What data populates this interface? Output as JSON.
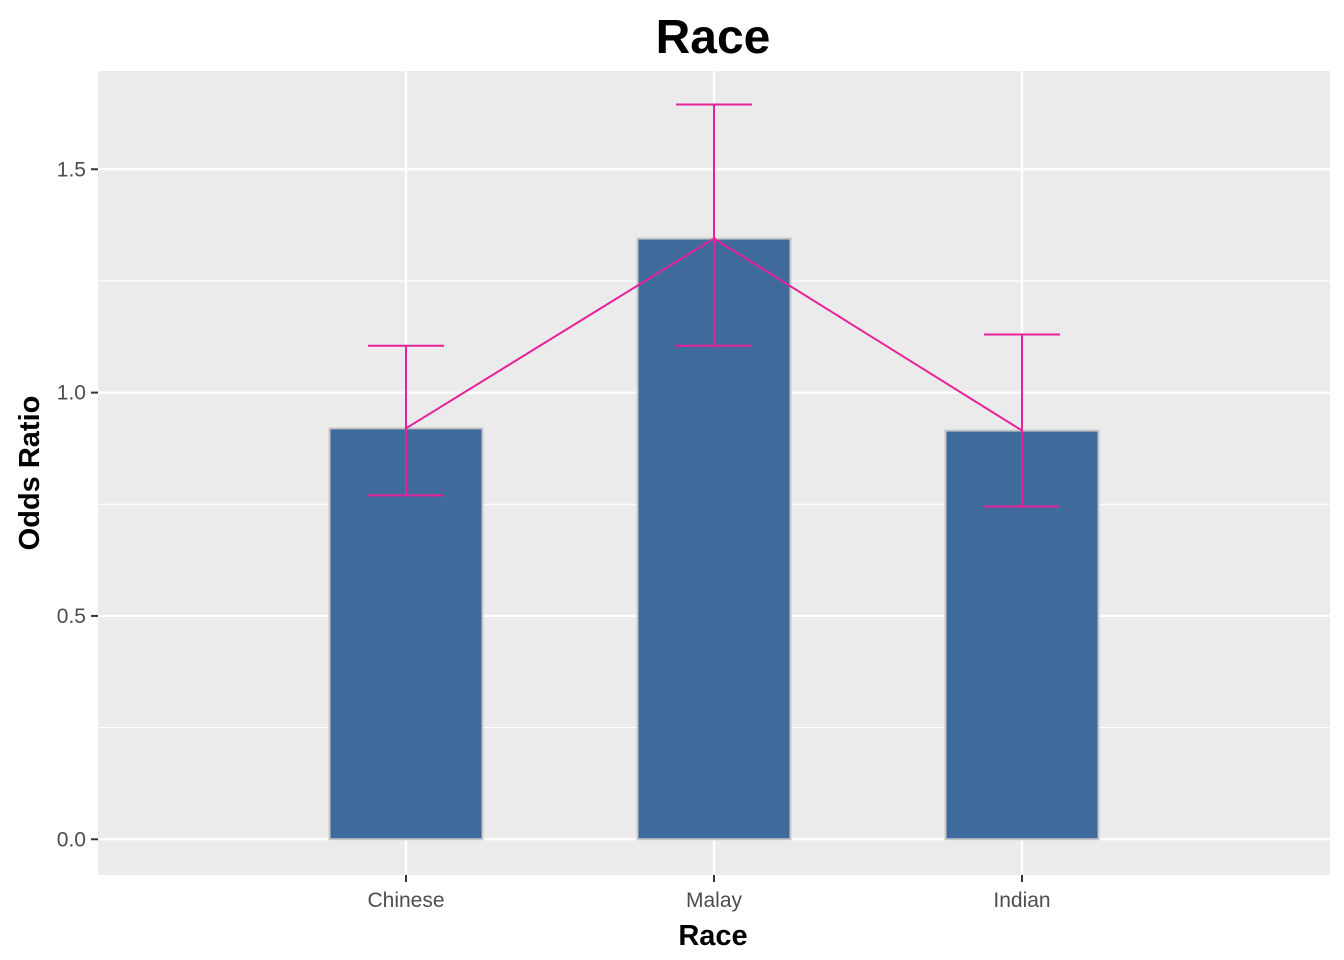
{
  "chart_data": {
    "type": "bar",
    "title": "Race",
    "xlabel": "Race",
    "ylabel": "Odds Ratio",
    "categories": [
      "Chinese",
      "Malay",
      "Indian"
    ],
    "values": [
      0.92,
      1.345,
      0.915
    ],
    "ci_lower": [
      0.77,
      1.105,
      0.745
    ],
    "ci_upper": [
      1.105,
      1.645,
      1.13
    ],
    "ylim": [
      -0.08,
      1.72
    ],
    "yticks": [
      0.0,
      0.5,
      1.0,
      1.5
    ],
    "ytick_labels": [
      "0.0",
      "0.5",
      "1.0",
      "1.5"
    ],
    "grid": true,
    "legend": "none",
    "colors": {
      "bar_fill": "#3e6b9b",
      "bar_outline": "#c7c7c7",
      "line": "#e8219a",
      "panel": "#ebebeb",
      "grid": "#ffffff"
    }
  }
}
